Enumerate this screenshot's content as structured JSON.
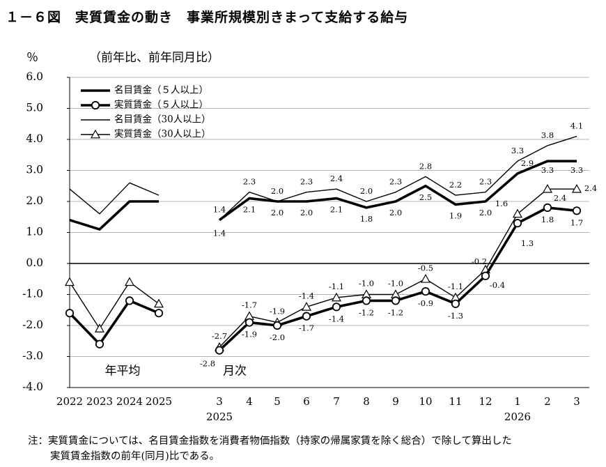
{
  "title": "１－６図　実質賃金の動き　事業所規模別きまって支給する給与",
  "unit": "％",
  "unit_sub": "（前年比、前年同月比）",
  "note_line1": "注：実質賃金については、名目賃金指数を消費者物価指数（持家の帰属家賃を除く総合）で除して算出した",
  "note_line2": "実質賃金指数の前年(同月)比である。",
  "chart_data": {
    "type": "line",
    "ylim": [
      -4.0,
      6.0
    ],
    "yticks": [
      "6.0",
      "5.0",
      "4.0",
      "3.0",
      "2.0",
      "1.0",
      "0.0",
      "-1.0",
      "-2.0",
      "-3.0",
      "-4.0"
    ],
    "grid": true,
    "legend_position": "top-left",
    "annual": {
      "label": "年平均",
      "categories": [
        "2022",
        "2023",
        "2024",
        "2025"
      ]
    },
    "monthly": {
      "label": "月次",
      "categories": [
        "3",
        "4",
        "5",
        "6",
        "7",
        "8",
        "9",
        "10",
        "11",
        "12",
        "1",
        "2",
        "3"
      ],
      "year_labels": [
        "2025",
        "2026"
      ]
    },
    "series": [
      {
        "name": "名目賃金（５人以上）",
        "style": "thick",
        "annual": [
          1.4,
          1.1,
          2.0,
          2.0
        ],
        "monthly": [
          1.4,
          2.1,
          2.0,
          2.0,
          2.1,
          1.8,
          2.0,
          2.5,
          1.9,
          2.0,
          2.9,
          3.3,
          3.3
        ],
        "monthly_labels": [
          "1.4",
          "2.1",
          "2.0",
          "2.0",
          "2.1",
          "1.8",
          "2.0",
          "2.5",
          "1.9",
          "2.0",
          "",
          "3.3",
          "3.3"
        ]
      },
      {
        "name": "実質賃金（５人以上）",
        "style": "thick-circle",
        "annual": [
          -1.6,
          -2.6,
          -1.2,
          -1.6
        ],
        "monthly": [
          -2.8,
          -1.9,
          -2.0,
          -1.7,
          -1.4,
          -1.2,
          -1.2,
          -0.9,
          -1.3,
          -0.4,
          1.3,
          1.8,
          1.7
        ],
        "monthly_labels": [
          "-2.8",
          "-1.9",
          "-2.0",
          "-1.7",
          "-1.4",
          "-1.2",
          "-1.2",
          "-0.9",
          "-1.3",
          "-0.4",
          "1.3",
          "1.8",
          "1.7"
        ]
      },
      {
        "name": "名目賃金（30人以上）",
        "style": "thin",
        "annual": [
          2.4,
          1.6,
          2.6,
          2.2
        ],
        "monthly": [
          1.4,
          2.3,
          2.0,
          2.3,
          2.4,
          2.0,
          2.3,
          2.8,
          2.2,
          2.3,
          3.3,
          3.8,
          4.1
        ],
        "monthly_labels": [
          "1.4",
          "2.3",
          "2.0",
          "2.3",
          "2.4",
          "2.0",
          "2.3",
          "2.8",
          "2.2",
          "2.3",
          "3.3",
          "3.8",
          "4.1"
        ]
      },
      {
        "name": "実質賃金（30人以上）",
        "style": "thin-triangle",
        "annual": [
          -0.6,
          -2.1,
          -0.6,
          -1.3
        ],
        "monthly": [
          -2.7,
          -1.7,
          -1.9,
          -1.4,
          -1.1,
          -1.0,
          -1.0,
          -0.5,
          -1.1,
          -0.2,
          1.6,
          2.4,
          2.4
        ],
        "monthly_labels": [
          "-2.7",
          "-1.7",
          "-1.9",
          "-1.4",
          "-1.1",
          "-1.0",
          "-1.0",
          "-0.5",
          "-1.1",
          "-0.2",
          "1.6",
          "2.4",
          "2.4"
        ]
      }
    ],
    "extra_labels": [
      "2.9"
    ]
  }
}
